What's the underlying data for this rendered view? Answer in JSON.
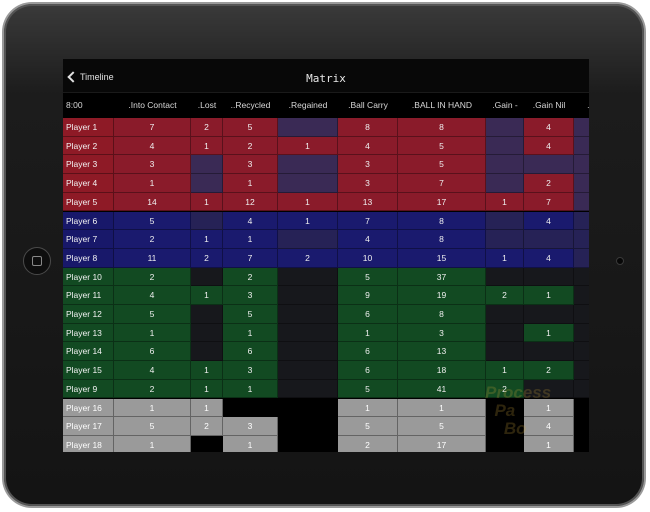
{
  "nav": {
    "back_label": "Timeline",
    "title": "Matrix"
  },
  "header": {
    "time": "8:00",
    "columns": [
      ".Into Contact",
      ".Lost",
      "..Recycled",
      ".Regained",
      ".Ball Carry",
      ".BALL IN HAND",
      ".Gain -",
      ".Gain Nil",
      ".Ga"
    ]
  },
  "colors": {
    "red_strong": "#8a1b2a",
    "red_soft": "#3a2a55",
    "blue_strong": "#1a1a6e",
    "blue_soft": "#262256",
    "green_strong": "#124a22",
    "green_soft": "#17181c",
    "grey_strong": "#9a9a9a",
    "grey_soft": "#000000"
  },
  "rows": [
    {
      "name": "Player 1",
      "group": "red",
      "values": [
        "7",
        "2",
        "5",
        "",
        "8",
        "8",
        "",
        "4",
        ""
      ]
    },
    {
      "name": "Player 2",
      "group": "red",
      "values": [
        "4",
        "1",
        "2",
        "1",
        "4",
        "5",
        "",
        "4",
        ""
      ]
    },
    {
      "name": "Player 3",
      "group": "red",
      "values": [
        "3",
        "",
        "3",
        "",
        "3",
        "5",
        "",
        "",
        ""
      ]
    },
    {
      "name": "Player 4",
      "group": "red",
      "values": [
        "1",
        "",
        "1",
        "",
        "3",
        "7",
        "",
        "2",
        ""
      ]
    },
    {
      "name": "Player 5",
      "group": "red",
      "values": [
        "14",
        "1",
        "12",
        "1",
        "13",
        "17",
        "1",
        "7",
        ""
      ]
    },
    {
      "name": "Player 6",
      "group": "blue",
      "values": [
        "5",
        "",
        "4",
        "1",
        "7",
        "8",
        "",
        "4",
        ""
      ]
    },
    {
      "name": "Player 7",
      "group": "blue",
      "values": [
        "2",
        "1",
        "1",
        "",
        "4",
        "8",
        "",
        "",
        ""
      ]
    },
    {
      "name": "Player 8",
      "group": "blue",
      "values": [
        "11",
        "2",
        "7",
        "2",
        "10",
        "15",
        "1",
        "4",
        ""
      ]
    },
    {
      "name": "Player 10",
      "group": "green",
      "values": [
        "2",
        "",
        "2",
        "",
        "5",
        "37",
        "",
        "",
        ""
      ]
    },
    {
      "name": "Player 11",
      "group": "green",
      "values": [
        "4",
        "1",
        "3",
        "",
        "9",
        "19",
        "2",
        "1",
        ""
      ]
    },
    {
      "name": "Player 12",
      "group": "green",
      "values": [
        "5",
        "",
        "5",
        "",
        "6",
        "8",
        "",
        "",
        ""
      ]
    },
    {
      "name": "Player 13",
      "group": "green",
      "values": [
        "1",
        "",
        "1",
        "",
        "1",
        "3",
        "",
        "1",
        ""
      ]
    },
    {
      "name": "Player 14",
      "group": "green",
      "values": [
        "6",
        "",
        "6",
        "",
        "6",
        "13",
        "",
        "",
        ""
      ]
    },
    {
      "name": "Player 15",
      "group": "green",
      "values": [
        "4",
        "1",
        "3",
        "",
        "6",
        "18",
        "1",
        "2",
        ""
      ]
    },
    {
      "name": "Player 9",
      "group": "green",
      "values": [
        "2",
        "1",
        "1",
        "",
        "5",
        "41",
        "2",
        "",
        ""
      ]
    },
    {
      "name": "Player 16",
      "group": "grey",
      "values": [
        "1",
        "1",
        "",
        "",
        "1",
        "1",
        "",
        "1",
        ""
      ]
    },
    {
      "name": "Player 17",
      "group": "grey",
      "values": [
        "5",
        "2",
        "3",
        "",
        "5",
        "5",
        "",
        "4",
        ""
      ]
    },
    {
      "name": "Player 18",
      "group": "grey",
      "values": [
        "1",
        "",
        "1",
        "",
        "2",
        "17",
        "",
        "1",
        ""
      ]
    }
  ]
}
